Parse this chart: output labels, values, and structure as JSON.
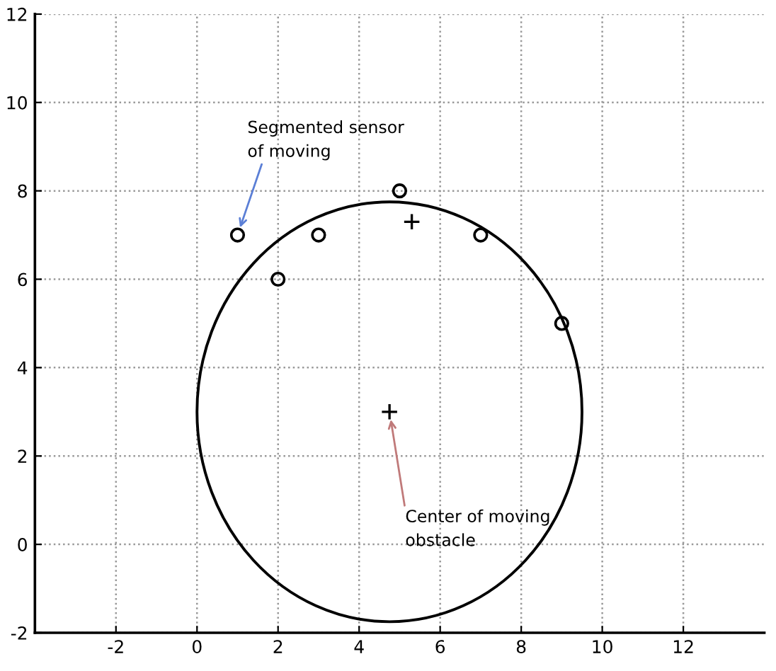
{
  "chart_data": {
    "type": "scatter",
    "xlim": [
      -4,
      14
    ],
    "ylim": [
      -2,
      12
    ],
    "xticks": [
      -2,
      0,
      2,
      4,
      6,
      8,
      10,
      12
    ],
    "yticks": [
      -2,
      0,
      2,
      4,
      6,
      8,
      10,
      12
    ],
    "grid": true,
    "series": [
      {
        "marker": "circle",
        "color": "#000000",
        "x": [
          1,
          2,
          3,
          5,
          7,
          9
        ],
        "values": [
          7,
          6,
          7,
          8,
          7,
          5
        ]
      },
      {
        "marker": "cross",
        "color": "#000000",
        "x": [
          5.3,
          4.75
        ],
        "values": [
          7.3,
          3
        ]
      }
    ],
    "annotations": [
      {
        "text": "Segmented sensor\nof moving",
        "x": 1,
        "y": 7
      },
      {
        "text": "Center of moving\nobstacle",
        "x": 4.75,
        "y": 3
      }
    ]
  }
}
